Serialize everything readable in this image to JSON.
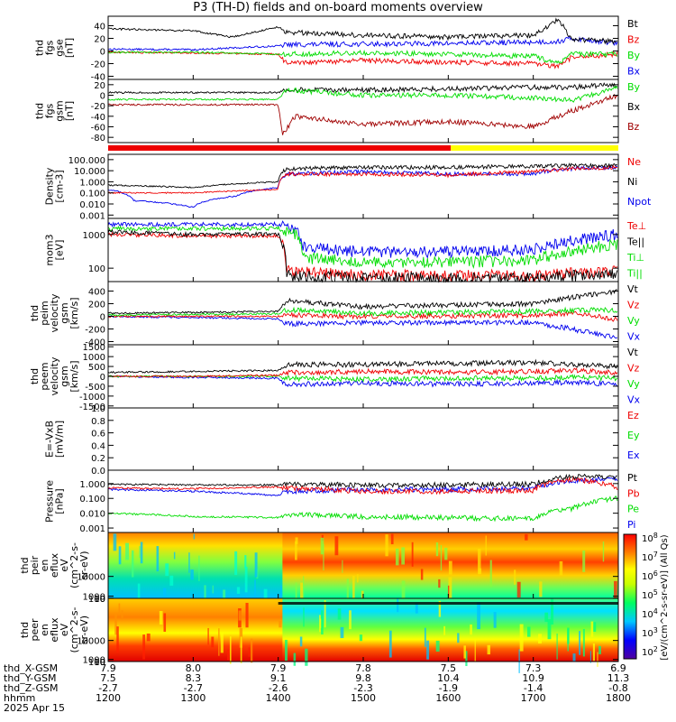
{
  "title": "P3 (TH-D) fields and on-board moments overview",
  "colors": {
    "black": "#000000",
    "red": "#ee0000",
    "green": "#00dd00",
    "blue": "#0000ee",
    "darkred": "#a00000",
    "yellow": "#ffff00"
  },
  "chart_data": [
    {
      "id": "fgs-gse",
      "type": "line",
      "ylabel": [
        "thd",
        "fgs",
        "gse",
        "[nT]"
      ],
      "ylim": [
        -45,
        55
      ],
      "yticks": [
        "40",
        "20",
        "0",
        "-20",
        "-40"
      ],
      "ytick_values": [
        40,
        20,
        0,
        -20,
        -40
      ],
      "legend": [
        {
          "text": "Bt",
          "color": "black"
        },
        {
          "text": "Bz",
          "color": "red"
        },
        {
          "text": "By",
          "color": "green"
        },
        {
          "text": "Bx",
          "color": "blue"
        }
      ],
      "series": [
        {
          "color": "blue",
          "x": [
            1200,
            1300,
            1400,
            1410,
            1500,
            1600,
            1700,
            1730,
            1745,
            1800
          ],
          "y": [
            3,
            2,
            8,
            10,
            11,
            12,
            14,
            15,
            20,
            12
          ]
        },
        {
          "color": "red",
          "x": [
            1200,
            1300,
            1400,
            1410,
            1500,
            1600,
            1700,
            1730,
            1745,
            1800
          ],
          "y": [
            -2,
            -3,
            -5,
            -20,
            -15,
            -18,
            -20,
            -25,
            -10,
            -5
          ]
        },
        {
          "color": "green",
          "x": [
            1200,
            1300,
            1400,
            1410,
            1500,
            1600,
            1700,
            1730,
            1745,
            1800
          ],
          "y": [
            -2,
            -2,
            -5,
            -5,
            -3,
            -5,
            -8,
            -20,
            -5,
            -5
          ]
        },
        {
          "color": "black",
          "x": [
            1200,
            1300,
            1345,
            1400,
            1410,
            1500,
            1600,
            1700,
            1730,
            1745,
            1800
          ],
          "y": [
            35,
            32,
            22,
            38,
            30,
            25,
            22,
            25,
            50,
            18,
            15
          ]
        }
      ]
    },
    {
      "id": "fgs-gsm",
      "type": "line",
      "ylabel": [
        "thd",
        "fgs",
        "gsm",
        "[nT]"
      ],
      "ylim": [
        -90,
        30
      ],
      "yticks": [
        "20",
        "0",
        "-20",
        "-40",
        "-60",
        "-80"
      ],
      "ytick_values": [
        20,
        0,
        -20,
        -40,
        -60,
        -80
      ],
      "legend": [
        {
          "text": "By",
          "color": "green"
        },
        {
          "text": "Bx",
          "color": "black"
        },
        {
          "text": "Bz",
          "color": "darkred"
        }
      ],
      "series": [
        {
          "color": "black",
          "x": [
            1200,
            1300,
            1400,
            1410,
            1500,
            1600,
            1700,
            1745,
            1800
          ],
          "y": [
            5,
            5,
            5,
            10,
            10,
            12,
            15,
            15,
            20
          ]
        },
        {
          "color": "green",
          "x": [
            1200,
            1300,
            1400,
            1410,
            1500,
            1600,
            1700,
            1745,
            1800
          ],
          "y": [
            -8,
            -8,
            -8,
            10,
            0,
            0,
            -5,
            -10,
            15
          ]
        },
        {
          "color": "darkred",
          "x": [
            1200,
            1300,
            1400,
            1405,
            1420,
            1500,
            1600,
            1700,
            1745,
            1800
          ],
          "y": [
            -18,
            -18,
            -18,
            -75,
            -40,
            -55,
            -50,
            -60,
            -30,
            0
          ]
        }
      ]
    },
    {
      "id": "density",
      "type": "line",
      "yscale": "log",
      "ylabel": [
        "Density",
        "[cm-3]"
      ],
      "ylim": [
        0.0005,
        300
      ],
      "yticks": [
        "100.000",
        "10.000",
        "1.000",
        "0.100",
        "0.010",
        "0.001"
      ],
      "ytick_values": [
        100,
        10,
        1,
        0.1,
        0.01,
        0.001
      ],
      "legend": [
        {
          "text": "Ne",
          "color": "red"
        },
        {
          "text": "Ni",
          "color": "black"
        },
        {
          "text": "Npot",
          "color": "blue"
        }
      ],
      "series": [
        {
          "color": "blue",
          "x": [
            1200,
            1230,
            1300,
            1350,
            1400,
            1410,
            1500,
            1600,
            1700,
            1745,
            1800
          ],
          "y": [
            0.2,
            0.02,
            0.005,
            0.05,
            0.3,
            5,
            8,
            5,
            5,
            15,
            20
          ]
        },
        {
          "color": "red",
          "x": [
            1200,
            1300,
            1400,
            1410,
            1500,
            1600,
            1700,
            1745,
            1800
          ],
          "y": [
            0.1,
            0.1,
            0.2,
            5,
            5,
            4,
            8,
            15,
            20
          ]
        },
        {
          "color": "black",
          "x": [
            1200,
            1300,
            1400,
            1410,
            1500,
            1600,
            1700,
            1745,
            1800
          ],
          "y": [
            0.5,
            0.3,
            1,
            15,
            20,
            20,
            25,
            30,
            30
          ]
        }
      ]
    },
    {
      "id": "temp",
      "type": "line",
      "yscale": "log",
      "ylabel": [
        "mom3",
        "[eV]"
      ],
      "ylim": [
        40,
        3000
      ],
      "yticks": [
        "1000",
        "100"
      ],
      "ytick_values": [
        1000,
        100
      ],
      "legend": [
        {
          "text": "Te⊥",
          "color": "red"
        },
        {
          "text": "Te||",
          "color": "black"
        },
        {
          "text": "Ti⊥",
          "color": "green"
        },
        {
          "text": "Ti||",
          "color": "green"
        }
      ],
      "series": [
        {
          "color": "blue",
          "x": [
            1200,
            1300,
            1400,
            1420,
            1430,
            1500,
            1600,
            1700,
            1800
          ],
          "y": [
            2000,
            2000,
            2000,
            1500,
            400,
            300,
            300,
            350,
            1000
          ]
        },
        {
          "color": "green",
          "x": [
            1200,
            1300,
            1400,
            1420,
            1430,
            1500,
            1600,
            1700,
            1800
          ],
          "y": [
            1500,
            1500,
            1500,
            1000,
            200,
            150,
            150,
            170,
            500
          ]
        },
        {
          "color": "red",
          "x": [
            1200,
            1300,
            1400,
            1410,
            1500,
            1600,
            1700,
            1800
          ],
          "y": [
            1000,
            900,
            900,
            80,
            60,
            60,
            60,
            80
          ]
        },
        {
          "color": "black",
          "x": [
            1200,
            1300,
            1400,
            1410,
            1500,
            1600,
            1700,
            1800
          ],
          "y": [
            1200,
            1000,
            1000,
            60,
            50,
            50,
            50,
            70
          ]
        }
      ]
    },
    {
      "id": "peim",
      "type": "line",
      "ylabel": [
        "thd",
        "peim",
        "velocity",
        "gsm",
        "[km/s]"
      ],
      "ylim": [
        -450,
        550
      ],
      "yticks": [
        "400",
        "200",
        "0",
        "-200",
        "-400"
      ],
      "ytick_values": [
        400,
        200,
        0,
        -200,
        -400
      ],
      "legend": [
        {
          "text": "Vt",
          "color": "black"
        },
        {
          "text": "Vz",
          "color": "red"
        },
        {
          "text": "Vy",
          "color": "green"
        },
        {
          "text": "Vx",
          "color": "blue"
        }
      ],
      "series": [
        {
          "color": "blue",
          "x": [
            1200,
            1300,
            1400,
            1410,
            1500,
            1600,
            1700,
            1745,
            1800
          ],
          "y": [
            0,
            -20,
            -40,
            -120,
            -100,
            -100,
            -100,
            -200,
            -350
          ]
        },
        {
          "color": "red",
          "x": [
            1200,
            1300,
            1400,
            1410,
            1500,
            1600,
            1700,
            1745,
            1800
          ],
          "y": [
            0,
            0,
            0,
            20,
            0,
            10,
            10,
            50,
            -50
          ]
        },
        {
          "color": "green",
          "x": [
            1200,
            1300,
            1400,
            1410,
            1500,
            1600,
            1700,
            1745,
            1800
          ],
          "y": [
            20,
            30,
            40,
            100,
            50,
            60,
            80,
            100,
            100
          ]
        },
        {
          "color": "black",
          "x": [
            1200,
            1300,
            1400,
            1410,
            1500,
            1600,
            1700,
            1745,
            1800
          ],
          "y": [
            50,
            60,
            80,
            250,
            150,
            180,
            200,
            300,
            400
          ]
        }
      ]
    },
    {
      "id": "peem",
      "type": "line",
      "ylabel": [
        "thd",
        "peem",
        "velocity",
        "gsm",
        "[km/s]"
      ],
      "ylim": [
        -1600,
        1600
      ],
      "yticks": [
        "1500",
        "1000",
        "500",
        "0",
        "-500",
        "-1000",
        "-1500"
      ],
      "ytick_values": [
        1500,
        1000,
        500,
        0,
        -500,
        -1000,
        -1500
      ],
      "legend": [
        {
          "text": "Vt",
          "color": "black"
        },
        {
          "text": "Vz",
          "color": "red"
        },
        {
          "text": "Vy",
          "color": "green"
        },
        {
          "text": "Vx",
          "color": "blue"
        }
      ],
      "series": [
        {
          "color": "blue",
          "x": [
            1200,
            1300,
            1400,
            1410,
            1500,
            1600,
            1700,
            1745,
            1800
          ],
          "y": [
            0,
            -50,
            -100,
            -400,
            -350,
            -400,
            -350,
            -300,
            -400
          ]
        },
        {
          "color": "green",
          "x": [
            1200,
            1300,
            1400,
            1410,
            1500,
            1600,
            1700,
            1745,
            1800
          ],
          "y": [
            0,
            0,
            0,
            -100,
            -150,
            -100,
            -100,
            -50,
            -100
          ]
        },
        {
          "color": "red",
          "x": [
            1200,
            1300,
            1400,
            1410,
            1500,
            1600,
            1700,
            1745,
            1800
          ],
          "y": [
            0,
            0,
            50,
            200,
            250,
            200,
            250,
            300,
            200
          ]
        },
        {
          "color": "black",
          "x": [
            1200,
            1300,
            1400,
            1410,
            1500,
            1600,
            1700,
            1745,
            1800
          ],
          "y": [
            200,
            250,
            300,
            600,
            600,
            650,
            700,
            600,
            500
          ]
        }
      ]
    },
    {
      "id": "efield",
      "type": "line",
      "ylabel": [
        "E=-VxB",
        "[mV/m]"
      ],
      "ylim": [
        0,
        1
      ],
      "yticks": [
        "1.0",
        "0.8",
        "0.6",
        "0.4",
        "0.2",
        "0.0"
      ],
      "ytick_values": [
        1.0,
        0.8,
        0.6,
        0.4,
        0.2,
        0.0
      ],
      "legend": [
        {
          "text": "Ez",
          "color": "red"
        },
        {
          "text": "Ey",
          "color": "green"
        },
        {
          "text": "Ex",
          "color": "blue"
        }
      ],
      "series": []
    },
    {
      "id": "pressure",
      "type": "line",
      "yscale": "log",
      "ylabel": [
        "Pressure",
        "[nPa]"
      ],
      "ylim": [
        0.0005,
        8
      ],
      "yticks": [
        "1.000",
        "0.100",
        "0.010",
        "0.001"
      ],
      "ytick_values": [
        1,
        0.1,
        0.01,
        0.001
      ],
      "legend": [
        {
          "text": "Pt",
          "color": "black"
        },
        {
          "text": "Pb",
          "color": "red"
        },
        {
          "text": "Pe",
          "color": "green"
        },
        {
          "text": "Pi",
          "color": "blue"
        }
      ],
      "series": [
        {
          "color": "green",
          "x": [
            1200,
            1300,
            1400,
            1410,
            1500,
            1600,
            1700,
            1745,
            1800
          ],
          "y": [
            0.01,
            0.006,
            0.005,
            0.008,
            0.006,
            0.005,
            0.004,
            0.02,
            0.1
          ]
        },
        {
          "color": "blue",
          "x": [
            1200,
            1300,
            1400,
            1410,
            1500,
            1600,
            1700,
            1745,
            1800
          ],
          "y": [
            0.4,
            0.3,
            0.15,
            0.3,
            0.4,
            0.4,
            0.5,
            1.5,
            2
          ]
        },
        {
          "color": "red",
          "x": [
            1200,
            1300,
            1400,
            1410,
            1500,
            1600,
            1700,
            1745,
            1800
          ],
          "y": [
            0.5,
            0.45,
            0.6,
            0.5,
            0.3,
            0.3,
            0.35,
            2,
            0.5
          ]
        },
        {
          "color": "black",
          "x": [
            1200,
            1300,
            1400,
            1410,
            1500,
            1600,
            1700,
            1745,
            1800
          ],
          "y": [
            0.9,
            0.8,
            0.8,
            0.9,
            0.8,
            0.8,
            0.9,
            3,
            2.5
          ]
        }
      ]
    },
    {
      "id": "peir",
      "type": "heatmap",
      "ylabel": [
        "thd",
        "peir",
        "en",
        "eflux",
        "eV",
        "(cm^2-s-",
        "sr-eV)"
      ],
      "yticks": [
        "10000",
        "1000",
        "100",
        "10"
      ],
      "ytick_values": [
        10000,
        1000,
        100,
        10
      ],
      "ylim": [
        5,
        30000
      ]
    },
    {
      "id": "peer",
      "type": "heatmap",
      "ylabel": [
        "thd",
        "peer",
        "en",
        "eflux",
        "eV",
        "(cm^2-s-",
        "sr-eV)"
      ],
      "yticks": [
        "10000",
        "1000",
        "100",
        "10"
      ],
      "ytick_values": [
        10000,
        1000,
        100,
        10
      ],
      "ylim": [
        5,
        30000
      ]
    }
  ],
  "colorbar": {
    "label": "[eV/(cm^2-s-sr-eV)] (All Qs)",
    "ticks": [
      {
        "base": "10",
        "exp": "8"
      },
      {
        "base": "10",
        "exp": "7"
      },
      {
        "base": "10",
        "exp": "6"
      },
      {
        "base": "10",
        "exp": "5"
      },
      {
        "base": "10",
        "exp": "4"
      },
      {
        "base": "10",
        "exp": "3"
      },
      {
        "base": "10",
        "exp": "2"
      }
    ]
  },
  "x_axis": {
    "tick_values": [
      1200,
      1300,
      1400,
      1500,
      1600,
      1700,
      1800
    ],
    "rows": [
      {
        "label": "thd_X-GSM",
        "values": [
          "7.9",
          "8.0",
          "7.9",
          "7.8",
          "7.5",
          "7.3",
          "6.9"
        ]
      },
      {
        "label": "thd_Y-GSM",
        "values": [
          "7.5",
          "8.3",
          "9.1",
          "9.8",
          "10.4",
          "10.9",
          "11.3"
        ]
      },
      {
        "label": "thd_Z-GSM",
        "values": [
          "-2.7",
          "-2.7",
          "-2.6",
          "-2.3",
          "-1.9",
          "-1.4",
          "-0.8"
        ]
      },
      {
        "label": "hhmm",
        "values": [
          "1200",
          "1300",
          "1400",
          "1500",
          "1600",
          "1700",
          "1800"
        ]
      }
    ],
    "date": "2025 Apr 15"
  }
}
